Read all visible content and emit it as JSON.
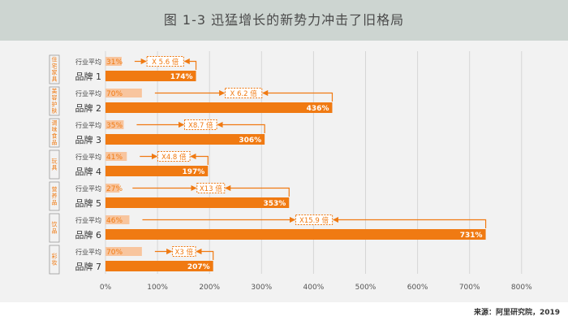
{
  "colors": {
    "header_bg": "#cdd5d1",
    "panel_bg": "#f2f2f2",
    "brand_bar": "#f07a12",
    "avg_bar": "#f8c59e",
    "avg_label": "#f07a12",
    "arrow": "#f07a12",
    "grid": "#d6d6d6",
    "text": "#333333"
  },
  "chart_data": {
    "type": "bar",
    "orientation": "horizontal",
    "title": "图 1-3 迅猛增长的新势力冲击了旧格局",
    "xlim": [
      0,
      800
    ],
    "xticks": [
      "0%",
      "100%",
      "200%",
      "300%",
      "400%",
      "500%",
      "600%",
      "700%",
      "800%"
    ],
    "grid": true,
    "avg_row_label": "行业平均",
    "groups": [
      {
        "category": "住宅家具",
        "brand": "品牌 1",
        "avg": 31,
        "avg_label": "31%",
        "value": 174,
        "value_label": "174%",
        "multiplier": "X 5.6 倍"
      },
      {
        "category": "美容护肤",
        "brand": "品牌 2",
        "avg": 70,
        "avg_label": "70%",
        "value": 436,
        "value_label": "436%",
        "multiplier": "X 6.2 倍"
      },
      {
        "category": "调味食品",
        "brand": "品牌 3",
        "avg": 35,
        "avg_label": "35%",
        "value": 306,
        "value_label": "306%",
        "multiplier": "X8.7 倍"
      },
      {
        "category": "玩具",
        "brand": "品牌 4",
        "avg": 41,
        "avg_label": "41%",
        "value": 197,
        "value_label": "197%",
        "multiplier": "X4.8 倍"
      },
      {
        "category": "营养品",
        "brand": "品牌 5",
        "avg": 27,
        "avg_label": "27%",
        "value": 353,
        "value_label": "353%",
        "multiplier": "X13 倍"
      },
      {
        "category": "饮品",
        "brand": "品牌 6",
        "avg": 46,
        "avg_label": "46%",
        "value": 731,
        "value_label": "731%",
        "multiplier": "X15.9 倍"
      },
      {
        "category": "彩妆",
        "brand": "品牌 7",
        "avg": 70,
        "avg_label": "70%",
        "value": 207,
        "value_label": "207%",
        "multiplier": "X3 倍"
      }
    ]
  },
  "source": "来源：阿里研究院，2019"
}
